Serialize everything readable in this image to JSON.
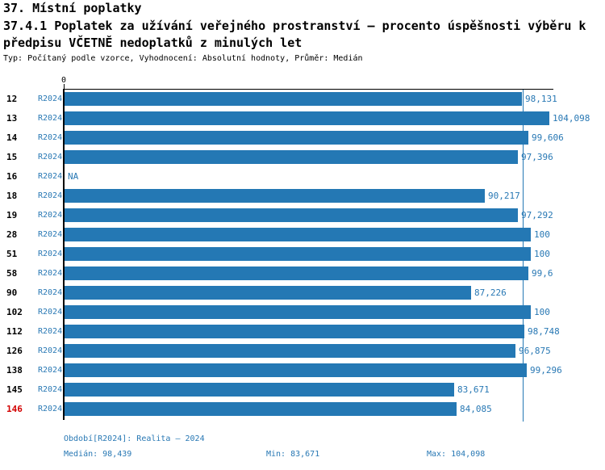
{
  "header": {
    "title": "37. Místní poplatky",
    "subtitle_line1": "37.4.1 Poplatek za užívání veřejného prostranství – procento úspěšnosti výběru k",
    "subtitle_line2": "předpisu VČETNĚ nedoplatků z minulých let",
    "meta": "Typ: Počítaný podle vzorce, Vyhodnocení: Absolutní hodnoty, Průměr: Medián"
  },
  "chart_data": {
    "type": "bar",
    "orientation": "horizontal",
    "title": "37.4.1 Poplatek za užívání veřejného prostranství – procento úspěšnosti výběru k předpisu VČETNĚ nedoplatků z minulých let",
    "xlabel": "",
    "ylabel": "",
    "axis_zero_label": "0",
    "xlim": [
      0,
      105
    ],
    "grid": false,
    "median": 98.439,
    "min": 83.671,
    "max": 104.098,
    "categories": [
      "12",
      "13",
      "14",
      "15",
      "16",
      "18",
      "19",
      "28",
      "51",
      "58",
      "90",
      "102",
      "112",
      "126",
      "138",
      "145",
      "146"
    ],
    "series_name": "R2024",
    "rows": [
      {
        "id": "12",
        "period": "R2024",
        "value": 98.131,
        "label": "98,131",
        "highlight": false
      },
      {
        "id": "13",
        "period": "R2024",
        "value": 104.098,
        "label": "104,098",
        "highlight": false
      },
      {
        "id": "14",
        "period": "R2024",
        "value": 99.606,
        "label": "99,606",
        "highlight": false
      },
      {
        "id": "15",
        "period": "R2024",
        "value": 97.396,
        "label": "97,396",
        "highlight": false
      },
      {
        "id": "16",
        "period": "R2024",
        "value": null,
        "label": "NA",
        "highlight": false
      },
      {
        "id": "18",
        "period": "R2024",
        "value": 90.217,
        "label": "90,217",
        "highlight": false
      },
      {
        "id": "19",
        "period": "R2024",
        "value": 97.292,
        "label": "97,292",
        "highlight": false
      },
      {
        "id": "28",
        "period": "R2024",
        "value": 100,
        "label": "100",
        "highlight": false
      },
      {
        "id": "51",
        "period": "R2024",
        "value": 100,
        "label": "100",
        "highlight": false
      },
      {
        "id": "58",
        "period": "R2024",
        "value": 99.6,
        "label": "99,6",
        "highlight": false
      },
      {
        "id": "90",
        "period": "R2024",
        "value": 87.226,
        "label": "87,226",
        "highlight": false
      },
      {
        "id": "102",
        "period": "R2024",
        "value": 100,
        "label": "100",
        "highlight": false
      },
      {
        "id": "112",
        "period": "R2024",
        "value": 98.748,
        "label": "98,748",
        "highlight": false
      },
      {
        "id": "126",
        "period": "R2024",
        "value": 96.875,
        "label": "96,875",
        "highlight": false
      },
      {
        "id": "138",
        "period": "R2024",
        "value": 99.296,
        "label": "99,296",
        "highlight": false
      },
      {
        "id": "145",
        "period": "R2024",
        "value": 83.671,
        "label": "83,671",
        "highlight": false
      },
      {
        "id": "146",
        "period": "R2024",
        "value": 84.085,
        "label": "84,085",
        "highlight": true
      }
    ]
  },
  "footer": {
    "period_info": "Období[R2024]: Realita – 2024",
    "median": "Medián: 98,439",
    "min": "Min: 83,671",
    "max": "Max: 104,098"
  },
  "colors": {
    "bar": "#2478b4",
    "text_blue": "#2878b4",
    "highlight_red": "#d20000",
    "axis_black": "#000000",
    "background": "#ffffff"
  }
}
